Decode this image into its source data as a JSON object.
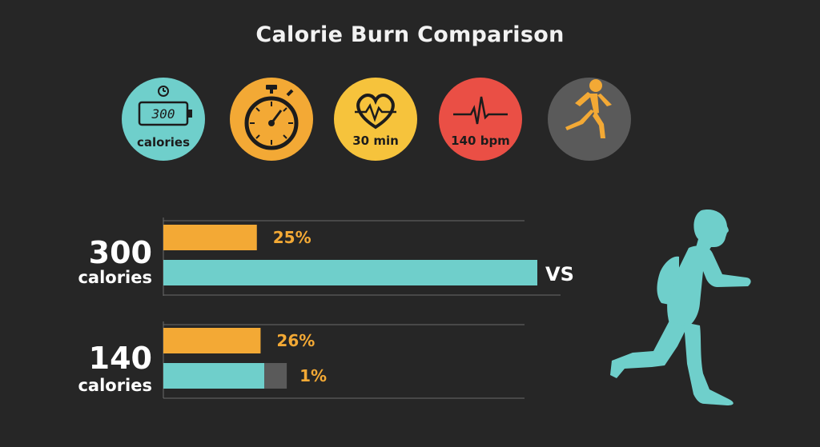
{
  "header": {
    "title": "Calorie Burn Comparison"
  },
  "icons": [
    {
      "name": "battery-calories-icon",
      "display": "300",
      "label": "calories",
      "color": "#6fcfcb"
    },
    {
      "name": "stopwatch-icon",
      "label": "",
      "color": "#f3a935"
    },
    {
      "name": "heart-rate-icon",
      "label": "30 min",
      "color": "#f6c33c"
    },
    {
      "name": "pulse-icon",
      "label": "140 bpm",
      "color": "#ea4f45"
    },
    {
      "name": "runner-icon",
      "label": "",
      "color": "#5a5a5a"
    }
  ],
  "comparison": {
    "vs_label": "VS"
  },
  "colors": {
    "orange": "#f3a935",
    "teal": "#6fcfcb",
    "grey": "#5a5a5a",
    "background": "#262626"
  },
  "chart_data": {
    "type": "bar",
    "orientation": "horizontal",
    "groups": [
      {
        "value_label": "300",
        "unit_label": "calories",
        "bars": [
          {
            "color": "orange",
            "percent": 25,
            "data_label": "25%"
          },
          {
            "color": "teal",
            "percent": 100,
            "data_label": ""
          }
        ]
      },
      {
        "value_label": "140",
        "unit_label": "calories",
        "bars": [
          {
            "color": "orange",
            "percent": 26,
            "data_label": "26%"
          },
          {
            "color": "teal",
            "percent": 27,
            "extra_percent": 6,
            "data_label": "1%"
          }
        ]
      }
    ],
    "grid": true,
    "legend": "none"
  }
}
